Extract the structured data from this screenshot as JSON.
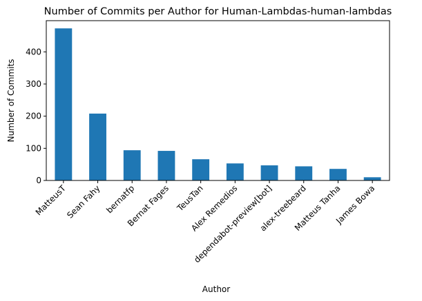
{
  "chart_data": {
    "type": "bar",
    "title": "Number of Commits per Author for Human-Lambdas-human-lambdas",
    "xlabel": "Author",
    "ylabel": "Number of Commits",
    "categories": [
      "MatteusT",
      "Sean Fahy",
      "bernatfp",
      "Bernat Fages",
      "TeusTan",
      "Alex Remedios",
      "dependabot-preview[bot]",
      "alex-treebeard",
      "Matteus Tanha",
      "James Bowa"
    ],
    "values": [
      473,
      208,
      94,
      92,
      66,
      53,
      47,
      44,
      36,
      10
    ],
    "ylim": [
      0,
      497
    ],
    "yticks": [
      0,
      100,
      200,
      300,
      400
    ],
    "grid": false,
    "color": "#1f77b4"
  }
}
